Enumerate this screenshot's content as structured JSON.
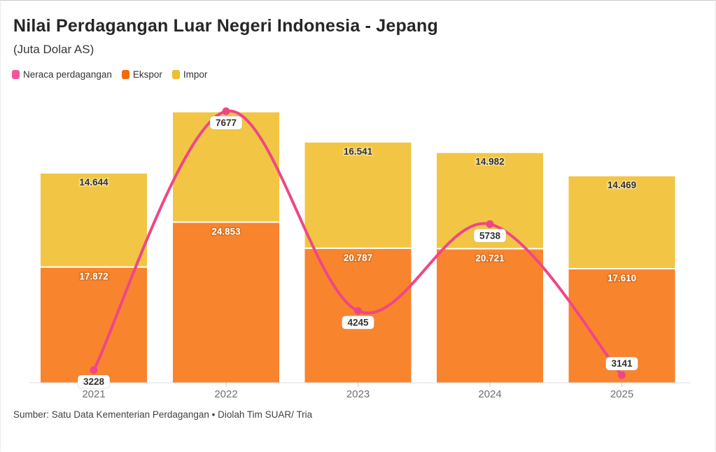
{
  "header": {
    "title": "Nilai Perdagangan Luar Negeri Indonesia - Jepang",
    "subtitle": "(Juta Dolar AS)"
  },
  "footer": {
    "source": "Sumber: Satu Data Kementerian Perdagangan • Diolah Tim SUAR/ Tria"
  },
  "colors": {
    "neraca": "#EE4787",
    "neraca_swatch": "#F2579B",
    "ekspor": "#F26A0D",
    "impor": "#EFBD2D",
    "ekspor_bar": "#F8842E",
    "impor_bar": "#F2C644",
    "axis_line": "#DCDCDC",
    "tick": "#C8C8C8",
    "x_label": "#6F6F6F",
    "label_dark": "#323232",
    "label_light": "#FFFFFF",
    "pill_bg": "#FFFFFF"
  },
  "chart_data": {
    "type": "bar+line",
    "title": "Nilai Perdagangan Luar Negeri Indonesia - Jepang",
    "subtitle": "(Juta Dolar AS)",
    "categories": [
      "2021",
      "2022",
      "2023",
      "2024",
      "2025"
    ],
    "series": [
      {
        "name": "Neraca perdagangan",
        "type": "line",
        "values": [
          3228,
          7677,
          4245,
          5738,
          3141
        ],
        "labels": [
          "3228",
          "7677",
          "4245",
          "5738",
          "3141"
        ],
        "label_side": [
          "below",
          "below",
          "below",
          "below",
          "above"
        ]
      },
      {
        "name": "Ekspor",
        "type": "bar",
        "values": [
          17872,
          24853,
          20787,
          20721,
          17610
        ],
        "labels": [
          "17.872",
          "24.853",
          "20.787",
          "20.721",
          "17.610"
        ]
      },
      {
        "name": "Impor",
        "type": "bar",
        "values": [
          14644,
          17176,
          16541,
          14982,
          14469
        ],
        "labels": [
          "14.644",
          "",
          "16.541",
          "14.982",
          "14.469"
        ]
      }
    ],
    "layout_hints": {
      "stacked_bars": true,
      "bar_axis_range": [
        0,
        43000
      ],
      "line_axis_range": [
        0,
        9000
      ],
      "axes_visible": false,
      "grid": false,
      "legend_position": "top-left",
      "value_labels": "inside-top-of-segment",
      "line_labels": "white-pill-at-point"
    }
  }
}
